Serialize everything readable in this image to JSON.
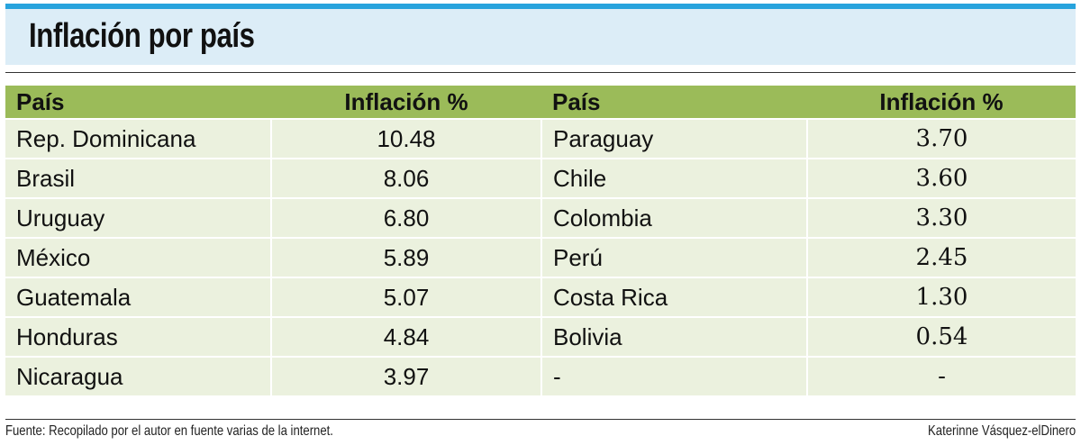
{
  "title": "Inflación por país",
  "table": {
    "headers": [
      "País",
      "Inflación %",
      "País",
      "Inflación %"
    ],
    "rows": [
      [
        "Rep. Dominicana",
        "10.48",
        "Paraguay",
        "3.70"
      ],
      [
        "Brasil",
        "8.06",
        "Chile",
        "3.60"
      ],
      [
        "Uruguay",
        "6.80",
        "Colombia",
        "3.30"
      ],
      [
        "México",
        "5.89",
        "Perú",
        "2.45"
      ],
      [
        "Guatemala",
        "5.07",
        "Costa Rica",
        "1.30"
      ],
      [
        "Honduras",
        "4.84",
        "Bolivia",
        "0.54"
      ],
      [
        "Nicaragua",
        "3.97",
        "-",
        "-"
      ]
    ]
  },
  "footer": {
    "source": "Fuente: Recopilado por el autor en fuente varias de la internet.",
    "credit": "Katerinne Vásquez-elDinero"
  },
  "colors": {
    "accent_rule": "#27a3dd",
    "title_band": "#dcedf7",
    "header_bg": "#9bbb59",
    "row_bg": "#ebf1de"
  }
}
